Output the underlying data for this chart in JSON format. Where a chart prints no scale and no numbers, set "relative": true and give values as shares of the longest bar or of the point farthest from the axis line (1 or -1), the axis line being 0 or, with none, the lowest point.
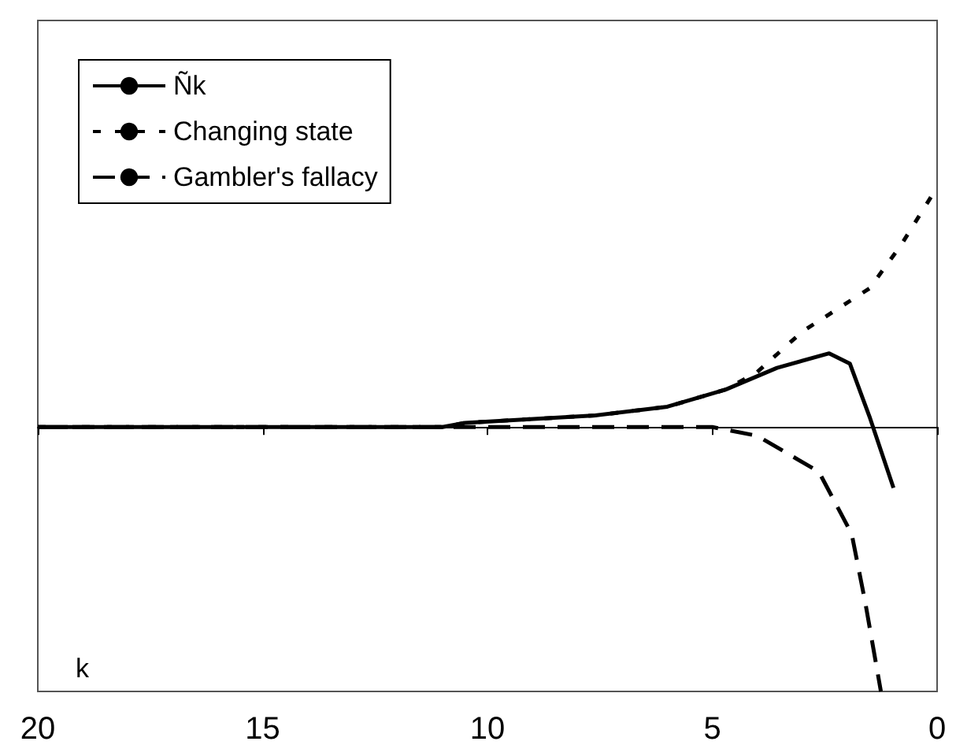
{
  "chart_data": {
    "type": "line",
    "relative": true,
    "xlabel": "k",
    "xlim": [
      20,
      0
    ],
    "xticks": [
      20,
      15,
      10,
      5,
      0
    ],
    "legend": "top left",
    "grid": false,
    "marker": "none",
    "tick_labels": "x",
    "series": [
      {
        "name": "Ñk",
        "color": "#000000",
        "line_style": "solid",
        "x": [
          20,
          15,
          11,
          10.5,
          7.6,
          6,
          4.7,
          3.56,
          2.4,
          1.94,
          1.49,
          0.97
        ],
        "values": [
          0,
          0,
          0,
          0.016,
          0.044,
          0.077,
          0.142,
          0.224,
          0.279,
          0.24,
          0.033,
          -0.23
        ]
      },
      {
        "name": "Changing state",
        "color": "#000000",
        "line_style": "dotted",
        "x": [
          20,
          15,
          11,
          10.5,
          7.6,
          6,
          4.7,
          4,
          3,
          1.5,
          0.8,
          0.1
        ],
        "values": [
          0,
          0,
          0,
          0.016,
          0.044,
          0.077,
          0.142,
          0.208,
          0.361,
          0.525,
          0.689,
          0.88
        ]
      },
      {
        "name": "Gambler's fallacy",
        "color": "#000000",
        "line_style": "dashed",
        "x": [
          20,
          15,
          10,
          5,
          4,
          2.63,
          1.9,
          1.6,
          1.25
        ],
        "values": [
          0,
          0,
          0,
          0,
          -0.033,
          -0.169,
          -0.404,
          -0.661,
          -1
        ]
      }
    ]
  }
}
